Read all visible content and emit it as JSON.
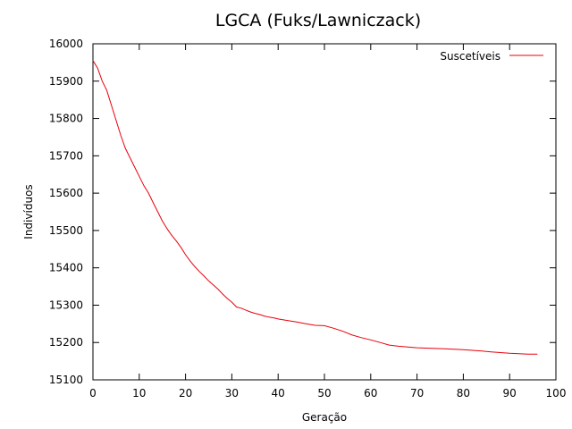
{
  "chart_data": {
    "type": "line",
    "title": "LGCA (Fuks/Lawniczack)",
    "xlabel": "Geração",
    "ylabel": "Indivíduos",
    "xlim": [
      0,
      100
    ],
    "ylim": [
      15100,
      16000
    ],
    "xticks": [
      0,
      10,
      20,
      30,
      40,
      50,
      60,
      70,
      80,
      90,
      100
    ],
    "yticks": [
      15100,
      15200,
      15300,
      15400,
      15500,
      15600,
      15700,
      15800,
      15900,
      16000
    ],
    "grid": false,
    "legend_position": "top-right",
    "series_color": "#e8000b",
    "series": [
      {
        "name": "Suscetíveis",
        "x": [
          0,
          1,
          2,
          3,
          4,
          5,
          6,
          7,
          8,
          9,
          10,
          11,
          12,
          13,
          14,
          15,
          16,
          17,
          18,
          19,
          20,
          21,
          22,
          23,
          24,
          25,
          26,
          27,
          28,
          29,
          30,
          31,
          32,
          33,
          34,
          35,
          36,
          37,
          38,
          39,
          40,
          42,
          44,
          46,
          48,
          50,
          52,
          54,
          56,
          58,
          60,
          62,
          64,
          66,
          68,
          70,
          72,
          74,
          76,
          78,
          80,
          82,
          84,
          86,
          88,
          90,
          92,
          94,
          96
        ],
        "y": [
          15955,
          15935,
          15900,
          15875,
          15835,
          15795,
          15755,
          15720,
          15695,
          15670,
          15645,
          15620,
          15600,
          15575,
          15550,
          15525,
          15505,
          15487,
          15472,
          15455,
          15435,
          15418,
          15403,
          15390,
          15378,
          15365,
          15354,
          15343,
          15330,
          15318,
          15308,
          15295,
          15292,
          15287,
          15282,
          15278,
          15275,
          15271,
          15268,
          15266,
          15263,
          15259,
          15255,
          15250,
          15246,
          15245,
          15238,
          15230,
          15220,
          15213,
          15207,
          15200,
          15193,
          15190,
          15188,
          15186,
          15185,
          15184,
          15183,
          15182,
          15181,
          15179,
          15177,
          15175,
          15173,
          15171,
          15170,
          15169,
          15169
        ]
      }
    ]
  }
}
